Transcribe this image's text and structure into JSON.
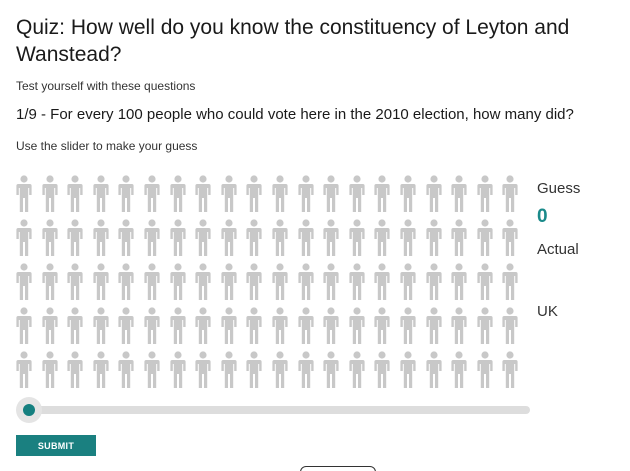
{
  "quiz": {
    "title": "Quiz: How well do you know the constituency of Leyton and Wanstead?",
    "subtitle": "Test yourself with these questions",
    "question": "1/9 - For every 100 people who could vote here in the 2010 election, how many did?",
    "instruction": "Use the slider to make your guess"
  },
  "people_grid": {
    "icon": "person-icon",
    "rows": 5,
    "columns": 20,
    "total": 100,
    "highlighted_count": 0,
    "inactive_color": "#c8c8c8",
    "active_color": "#1a8a8a"
  },
  "results": {
    "guess_label": "Guess",
    "guess_value": "0",
    "actual_label": "Actual",
    "uk_label": "UK"
  },
  "slider": {
    "min": 0,
    "max": 100,
    "value": 0,
    "track_color": "#dddddd",
    "handle_color": "#147f7f"
  },
  "actions": {
    "submit_label": "SUBMIT"
  },
  "colors": {
    "accent": "#1a8080",
    "text": "#222222"
  }
}
